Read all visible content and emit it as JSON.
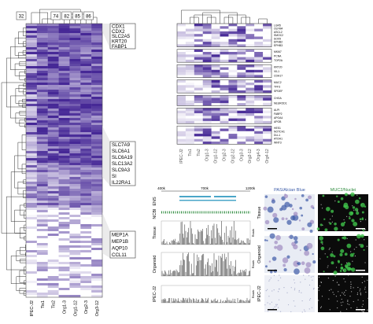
{
  "heatmap_left": {
    "top_labels": [
      "32",
      "74",
      "82",
      "85",
      "86"
    ],
    "gene_groups": [
      [
        "CDX1",
        "CDX2",
        "SLC2A5",
        "KRT20",
        "FABP1"
      ],
      [
        "SLC7A9",
        "SLC6A1",
        "SLC6A19",
        "SLC13A2",
        "SLC9A3",
        "SI",
        "IL22RA1"
      ],
      [
        "MEP1A",
        "MEP1B",
        "AQP10",
        "CCL11"
      ]
    ],
    "samples": [
      "IPEC-J2",
      "Tis1",
      "Tis2",
      "Org1-3",
      "Org1-12",
      "Org2-3",
      "Org3-12"
    ]
  },
  "heatmap_right": {
    "gene_groups": [
      [
        "LGR5",
        "OLFM4",
        "ASCL2",
        "SMOC2",
        "SOX9",
        "EPHB2",
        "EPHB3"
      ],
      [
        "MKI67",
        "PCNA",
        "TOP2A"
      ],
      [
        "KRT20",
        "VIL1",
        "CDH17"
      ],
      [
        "MUC2",
        "TFF3",
        "SPDEF"
      ],
      [
        "CHGA",
        "NEUROD1"
      ],
      [
        "ALPI",
        "FABP2",
        "APOA4",
        "APOB"
      ],
      [
        "HES1",
        "NOTCH1",
        "DLL1",
        "ATOH1",
        "WNT3"
      ]
    ],
    "samples": [
      "IPEC-J2",
      "Tis1",
      "Tis2",
      "Org1-3",
      "Org1-12",
      "Org2-3",
      "Org2-12",
      "Org3-3",
      "Org3-12",
      "Org4-3",
      "Org4-12"
    ]
  },
  "tracks": {
    "axis": [
      "400k",
      "700k",
      "1200k"
    ],
    "rows": [
      "ENS",
      "NCBI",
      "Tissue",
      "Organoid",
      "IPEC-J2"
    ],
    "reads": "Reads"
  },
  "micro": {
    "columns": [
      "PAS/Alcian Blue",
      "MUC2/Nuclei"
    ],
    "rows": [
      "Tissue",
      "Organoid",
      "IPEC-J2"
    ]
  }
}
